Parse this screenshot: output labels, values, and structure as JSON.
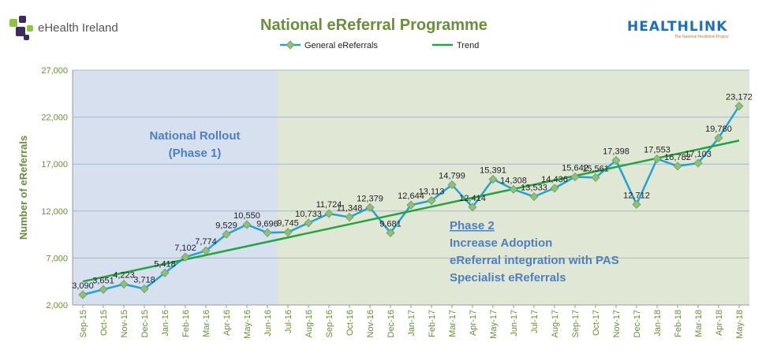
{
  "logos": {
    "left": "eHealth Ireland",
    "right": "HEALTHLINK",
    "right_tagline": "The National Healthlink Project"
  },
  "colors": {
    "series": "#1fa3d8",
    "marker": "#8fbf7a",
    "trend": "#22a540",
    "phase1_bg": "#d6e0ee",
    "phase2_bg": "#e0e7d4",
    "title": "#6a8f3a",
    "axis_text": "#6a8f3a",
    "annotation": "#4f7fbf"
  },
  "chart_data": {
    "type": "line",
    "title": "National eReferral Programme",
    "xlabel": "",
    "ylabel": "Number of eReferrals",
    "ylim": [
      2000,
      27000
    ],
    "yticks": [
      2000,
      7000,
      12000,
      17000,
      22000,
      27000
    ],
    "ytick_labels": [
      "2,000",
      "7,000",
      "12,000",
      "17,000",
      "22,000",
      "27,000"
    ],
    "grid": true,
    "legend_position": "top-center",
    "categories": [
      "Sep-15",
      "Oct-15",
      "Nov-15",
      "Dec-15",
      "Jan-16",
      "Feb-16",
      "Mar-16",
      "Apr-16",
      "May-16",
      "Jun-16",
      "Jul-16",
      "Aug-16",
      "Sep-16",
      "Oct-16",
      "Nov-16",
      "Dec-16",
      "Jan-17",
      "Feb-17",
      "Mar-17",
      "Apr-17",
      "May-17",
      "Jun-17",
      "Jul-17",
      "Aug-17",
      "Sep-17",
      "Oct-17",
      "Nov-17",
      "Dec-17",
      "Jan-18",
      "Feb-18",
      "Mar-18",
      "Apr-18",
      "May-18"
    ],
    "series": [
      {
        "name": "General eReferrals",
        "values": [
          3090,
          3651,
          4223,
          3718,
          5418,
          7102,
          7774,
          9529,
          10550,
          9696,
          9745,
          10733,
          11724,
          11348,
          12379,
          9681,
          12644,
          13113,
          14799,
          12414,
          15391,
          14308,
          13533,
          14436,
          15642,
          15561,
          17398,
          12712,
          17553,
          16782,
          17103,
          19780,
          23172
        ],
        "labels": [
          "3,090",
          "3,651",
          "4,223",
          "3,718",
          "5,418",
          "7,102",
          "7,774",
          "9,529",
          "10,550",
          "9,696",
          "9,745",
          "10,733",
          "11,724",
          "11,348",
          "12,379",
          "9,681",
          "12,644",
          "13,113",
          "14,799",
          "12,414",
          "15,391",
          "14,308",
          "13,533",
          "14,436",
          "15,642",
          "15,561",
          "17,398",
          "12,712",
          "17,553",
          "16,782",
          "17,103",
          "19,780",
          "23,172"
        ]
      },
      {
        "name": "Trend",
        "type": "linear",
        "start": 4500,
        "end": 19500
      }
    ],
    "phases": [
      {
        "name": "National Rollout",
        "subtitle": "(Phase 1)",
        "from": "Sep-15",
        "to": "Jun-16"
      },
      {
        "name": "Phase 2",
        "lines": [
          "Increase Adoption",
          "eReferral integration with PAS",
          "Specialist eReferrals"
        ],
        "from": "Jul-16",
        "to": "May-18"
      }
    ]
  }
}
